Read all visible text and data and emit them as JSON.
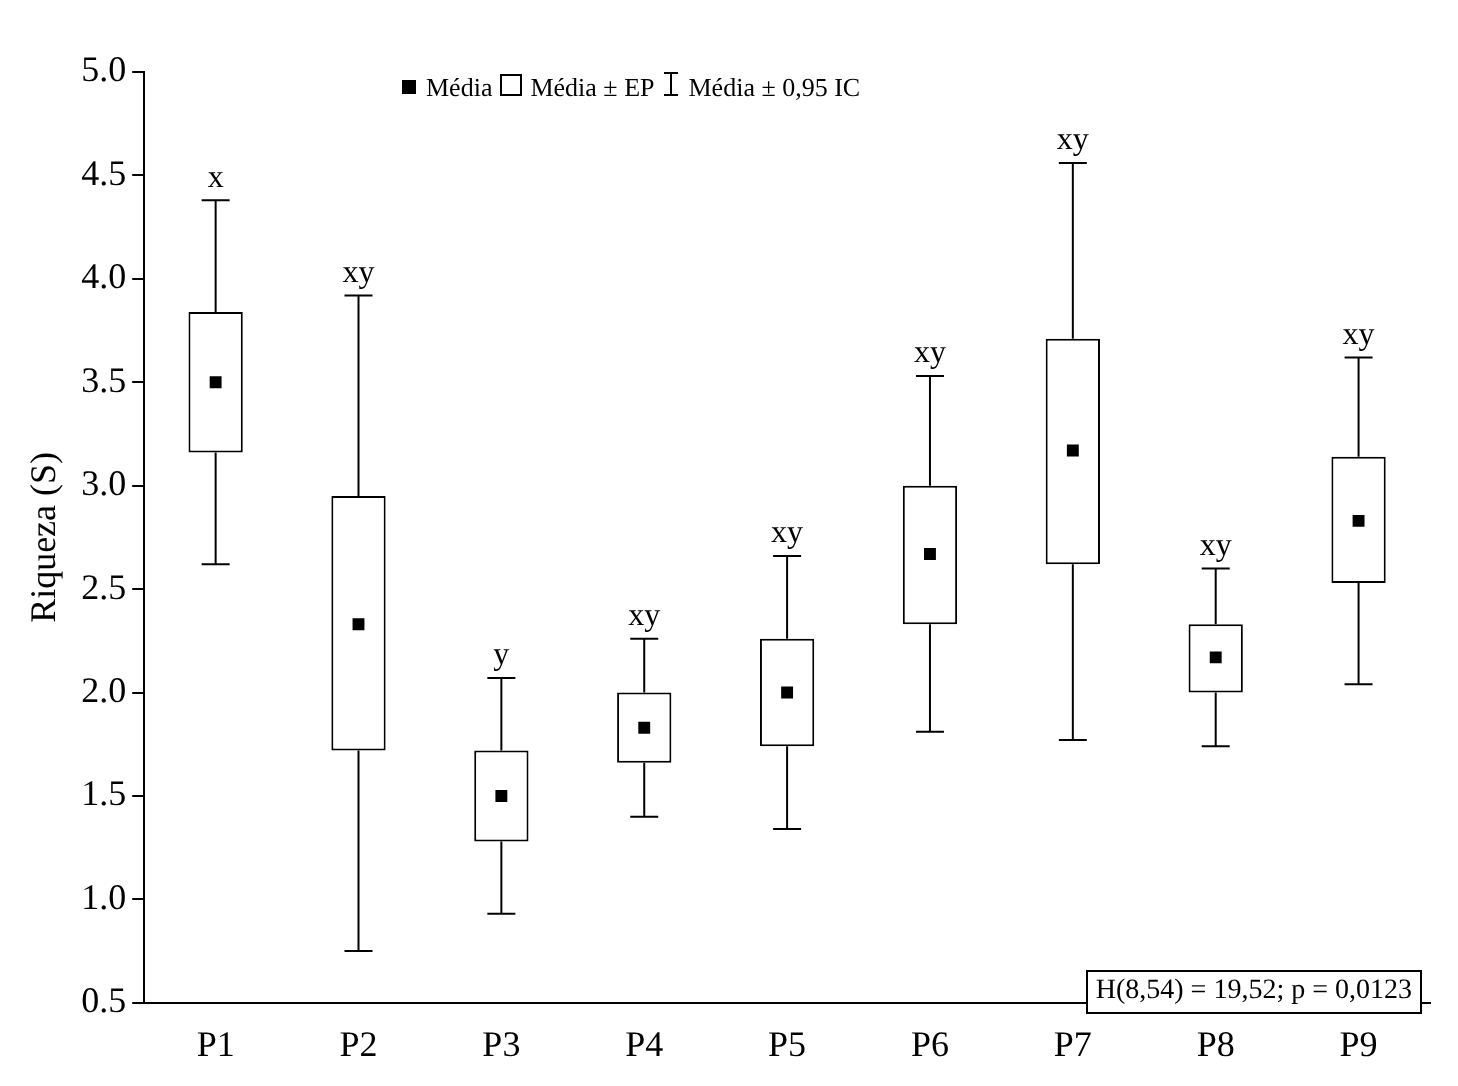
{
  "chart_data": {
    "type": "box",
    "ylabel": "Riqueza (S)",
    "categories": [
      "P1",
      "P2",
      "P3",
      "P4",
      "P5",
      "P6",
      "P7",
      "P8",
      "P9"
    ],
    "boxes": [
      {
        "low": 2.62,
        "q1": 3.16,
        "median": 3.5,
        "q3": 3.84,
        "high": 4.38
      },
      {
        "low": 0.75,
        "q1": 1.72,
        "median": 2.33,
        "q3": 2.95,
        "high": 3.92
      },
      {
        "low": 0.93,
        "q1": 1.28,
        "median": 1.5,
        "q3": 1.72,
        "high": 2.07
      },
      {
        "low": 1.4,
        "q1": 1.66,
        "median": 1.83,
        "q3": 2.0,
        "high": 2.26
      },
      {
        "low": 1.34,
        "q1": 1.74,
        "median": 2.0,
        "q3": 2.26,
        "high": 2.66
      },
      {
        "low": 1.81,
        "q1": 2.33,
        "median": 2.67,
        "q3": 3.0,
        "high": 3.53
      },
      {
        "low": 1.77,
        "q1": 2.62,
        "median": 3.17,
        "q3": 3.71,
        "high": 4.56
      },
      {
        "low": 1.74,
        "q1": 2.0,
        "median": 2.17,
        "q3": 2.33,
        "high": 2.6
      },
      {
        "low": 2.04,
        "q1": 2.53,
        "median": 2.83,
        "q3": 3.14,
        "high": 3.62
      }
    ],
    "color": "#000000",
    "marker": "square",
    "grid": false,
    "ylim": [
      0.5,
      5.0
    ],
    "yticks": [
      {
        "value": 0.5,
        "label": "0.5"
      },
      {
        "value": 1,
        "label": "1.0"
      },
      {
        "value": 1.5,
        "label": "1.5"
      },
      {
        "value": 2,
        "label": "2.0"
      },
      {
        "value": 2.5,
        "label": "2.5"
      },
      {
        "value": 3,
        "label": "3.0"
      },
      {
        "value": 3.5,
        "label": "3.5"
      },
      {
        "value": 4,
        "label": "4.0"
      },
      {
        "value": 4.5,
        "label": "4.5"
      },
      {
        "value": 5,
        "label": "5.0"
      }
    ],
    "annotations": [
      {
        "text": "x",
        "x": "P1",
        "y": 4.38
      },
      {
        "text": "xy",
        "x": "P2",
        "y": 3.92
      },
      {
        "text": "y",
        "x": "P3",
        "y": 2.07
      },
      {
        "text": "xy",
        "x": "P4",
        "y": 2.26
      },
      {
        "text": "xy",
        "x": "P5",
        "y": 2.66
      },
      {
        "text": "xy",
        "x": "P6",
        "y": 3.53
      },
      {
        "text": "xy",
        "x": "P7",
        "y": 4.56
      },
      {
        "text": "xy",
        "x": "P8",
        "y": 2.6
      },
      {
        "text": "xy",
        "x": "P9",
        "y": 3.62
      },
      "Média",
      "Média ± EP",
      "Média ± 0,95 IC",
      "H(8,54) = 19,52; p = 0,0123"
    ]
  }
}
